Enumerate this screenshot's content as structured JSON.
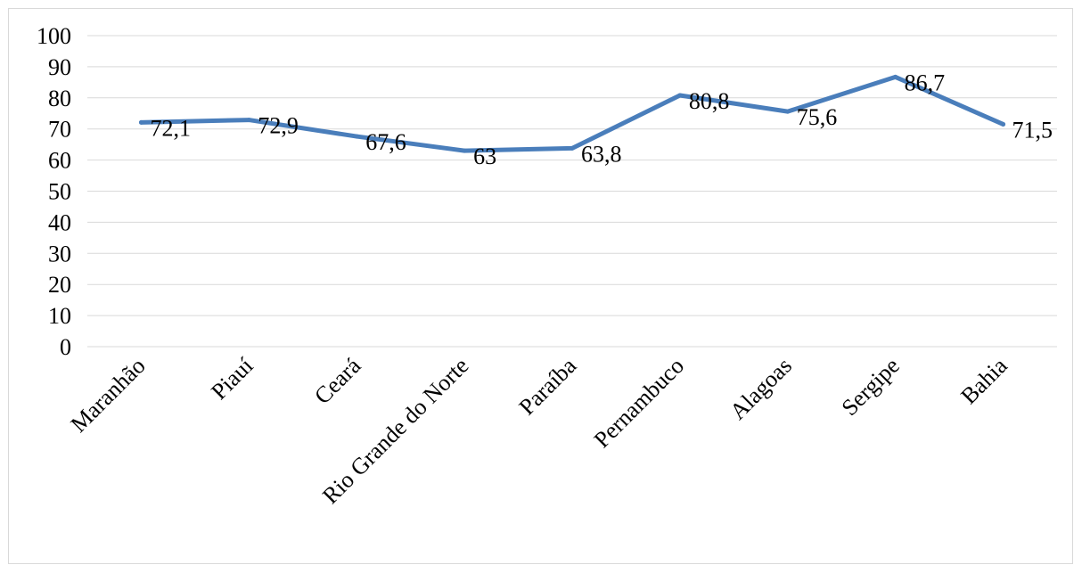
{
  "chart_data": {
    "type": "line",
    "categories": [
      "Maranhão",
      "Piauí",
      "Ceará",
      "Rio Grande do Norte",
      "Paraíba",
      "Pernambuco",
      "Alagoas",
      "Sergipe",
      "Bahia"
    ],
    "series": [
      {
        "values": [
          72.1,
          72.9,
          67.6,
          63,
          63.8,
          80.8,
          75.6,
          86.7,
          71.5
        ],
        "data_labels": [
          "72,1",
          "72,9",
          "67,6",
          "63",
          "63,8",
          "80,8",
          "75,6",
          "86,7",
          "71,5"
        ],
        "color": "#4a7ebb"
      }
    ],
    "y_ticks": [
      "0",
      "10",
      "20",
      "30",
      "40",
      "50",
      "60",
      "70",
      "80",
      "90",
      "100"
    ],
    "ylim": [
      0,
      100
    ],
    "grid": true,
    "legend": "none",
    "title": "",
    "xlabel": "",
    "ylabel": ""
  }
}
